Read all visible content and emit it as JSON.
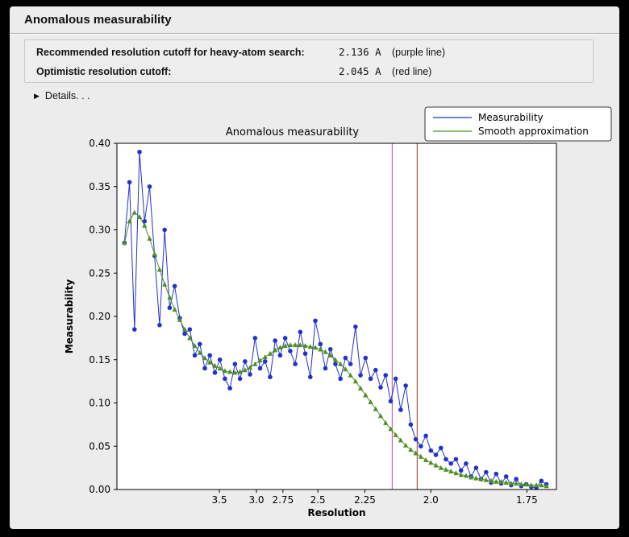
{
  "window": {
    "title": "Anomalous measurability"
  },
  "info": {
    "rows": [
      {
        "label": "Recommended resolution cutoff for heavy-atom search:",
        "value": "2.136 A",
        "note": "(purple line)"
      },
      {
        "label": "Optimistic resolution cutoff:",
        "value": "2.045 A",
        "note": "(red line)"
      }
    ]
  },
  "details": {
    "triangle": "▶",
    "label": "Details. . ."
  },
  "chart_data": {
    "type": "line",
    "title": "Anomalous measurability",
    "xlabel": "Resolution",
    "ylabel": "Measurability",
    "x_axis_note": "x positions spaced as 1/resolution^2",
    "xlim": [
      0,
      0.35
    ],
    "ylim": [
      0,
      0.4
    ],
    "x": [
      0.006,
      0.01,
      0.014,
      0.018,
      0.022,
      0.026,
      0.03,
      0.034,
      0.038,
      0.042,
      0.046,
      0.05,
      0.054,
      0.058,
      0.062,
      0.066,
      0.07,
      0.074,
      0.078,
      0.082,
      0.086,
      0.09,
      0.094,
      0.098,
      0.102,
      0.106,
      0.11,
      0.114,
      0.118,
      0.122,
      0.126,
      0.13,
      0.134,
      0.138,
      0.142,
      0.146,
      0.15,
      0.154,
      0.158,
      0.162,
      0.166,
      0.17,
      0.174,
      0.178,
      0.182,
      0.186,
      0.19,
      0.194,
      0.198,
      0.202,
      0.206,
      0.21,
      0.214,
      0.218,
      0.222,
      0.226,
      0.23,
      0.234,
      0.238,
      0.242,
      0.246,
      0.25,
      0.254,
      0.258,
      0.262,
      0.266,
      0.27,
      0.274,
      0.278,
      0.282,
      0.286,
      0.29,
      0.294,
      0.298,
      0.302,
      0.306,
      0.31,
      0.314,
      0.318,
      0.322,
      0.326,
      0.33,
      0.334,
      0.338,
      0.342
    ],
    "series": [
      {
        "name": "Measurability",
        "color": "#2233cc",
        "marker": "circle",
        "values": [
          0.285,
          0.355,
          0.185,
          0.39,
          0.31,
          0.35,
          0.27,
          0.19,
          0.3,
          0.21,
          0.235,
          0.198,
          0.18,
          0.185,
          0.155,
          0.168,
          0.14,
          0.155,
          0.135,
          0.15,
          0.128,
          0.117,
          0.145,
          0.128,
          0.148,
          0.133,
          0.175,
          0.14,
          0.148,
          0.13,
          0.172,
          0.155,
          0.175,
          0.16,
          0.145,
          0.182,
          0.157,
          0.13,
          0.195,
          0.168,
          0.14,
          0.162,
          0.145,
          0.128,
          0.152,
          0.145,
          0.188,
          0.132,
          0.152,
          0.128,
          0.138,
          0.118,
          0.132,
          0.102,
          0.128,
          0.092,
          0.12,
          0.075,
          0.058,
          0.05,
          0.062,
          0.045,
          0.04,
          0.048,
          0.035,
          0.03,
          0.035,
          0.022,
          0.03,
          0.015,
          0.025,
          0.012,
          0.02,
          0.008,
          0.018,
          0.007,
          0.015,
          0.005,
          0.012,
          0.004,
          0.006,
          0.003,
          0.002,
          0.01,
          0.006
        ]
      },
      {
        "name": "Smooth approximation",
        "color": "#4e8f22",
        "marker": "triangle",
        "values": [
          0.285,
          0.31,
          0.32,
          0.315,
          0.305,
          0.29,
          0.272,
          0.254,
          0.237,
          0.222,
          0.208,
          0.196,
          0.185,
          0.175,
          0.166,
          0.158,
          0.152,
          0.147,
          0.143,
          0.14,
          0.137,
          0.136,
          0.135,
          0.136,
          0.138,
          0.141,
          0.145,
          0.149,
          0.153,
          0.157,
          0.161,
          0.164,
          0.166,
          0.167,
          0.167,
          0.167,
          0.166,
          0.165,
          0.164,
          0.162,
          0.159,
          0.155,
          0.15,
          0.145,
          0.139,
          0.132,
          0.125,
          0.117,
          0.109,
          0.101,
          0.093,
          0.085,
          0.077,
          0.07,
          0.063,
          0.057,
          0.051,
          0.046,
          0.042,
          0.038,
          0.034,
          0.031,
          0.028,
          0.025,
          0.023,
          0.021,
          0.019,
          0.017,
          0.016,
          0.014,
          0.013,
          0.012,
          0.011,
          0.01,
          0.009,
          0.009,
          0.008,
          0.007,
          0.007,
          0.006,
          0.006,
          0.005,
          0.005,
          0.005,
          0.004
        ]
      }
    ],
    "x_ticks": [
      {
        "label": "3.5",
        "s": 0.0816
      },
      {
        "label": "3.0",
        "s": 0.1111
      },
      {
        "label": "2.75",
        "s": 0.1322
      },
      {
        "label": "2.5",
        "s": 0.16
      },
      {
        "label": "2.25",
        "s": 0.1975
      },
      {
        "label": "2.0",
        "s": 0.25
      },
      {
        "label": "1.75",
        "s": 0.3265
      }
    ],
    "y_ticks": [
      0.0,
      0.05,
      0.1,
      0.15,
      0.2,
      0.25,
      0.3,
      0.35,
      0.4
    ],
    "vlines": [
      {
        "name": "recommended-cutoff-line",
        "resolution": "2.136",
        "s": 0.2192,
        "color": "#bb44bb"
      },
      {
        "name": "optimistic-cutoff-line",
        "resolution": "2.045",
        "s": 0.2391,
        "color": "#993333"
      }
    ],
    "legend": {
      "position": "top-right",
      "entries": [
        {
          "label": "Measurability",
          "color": "#2233cc"
        },
        {
          "label": "Smooth approximation",
          "color": "#4e8f22"
        }
      ]
    }
  }
}
